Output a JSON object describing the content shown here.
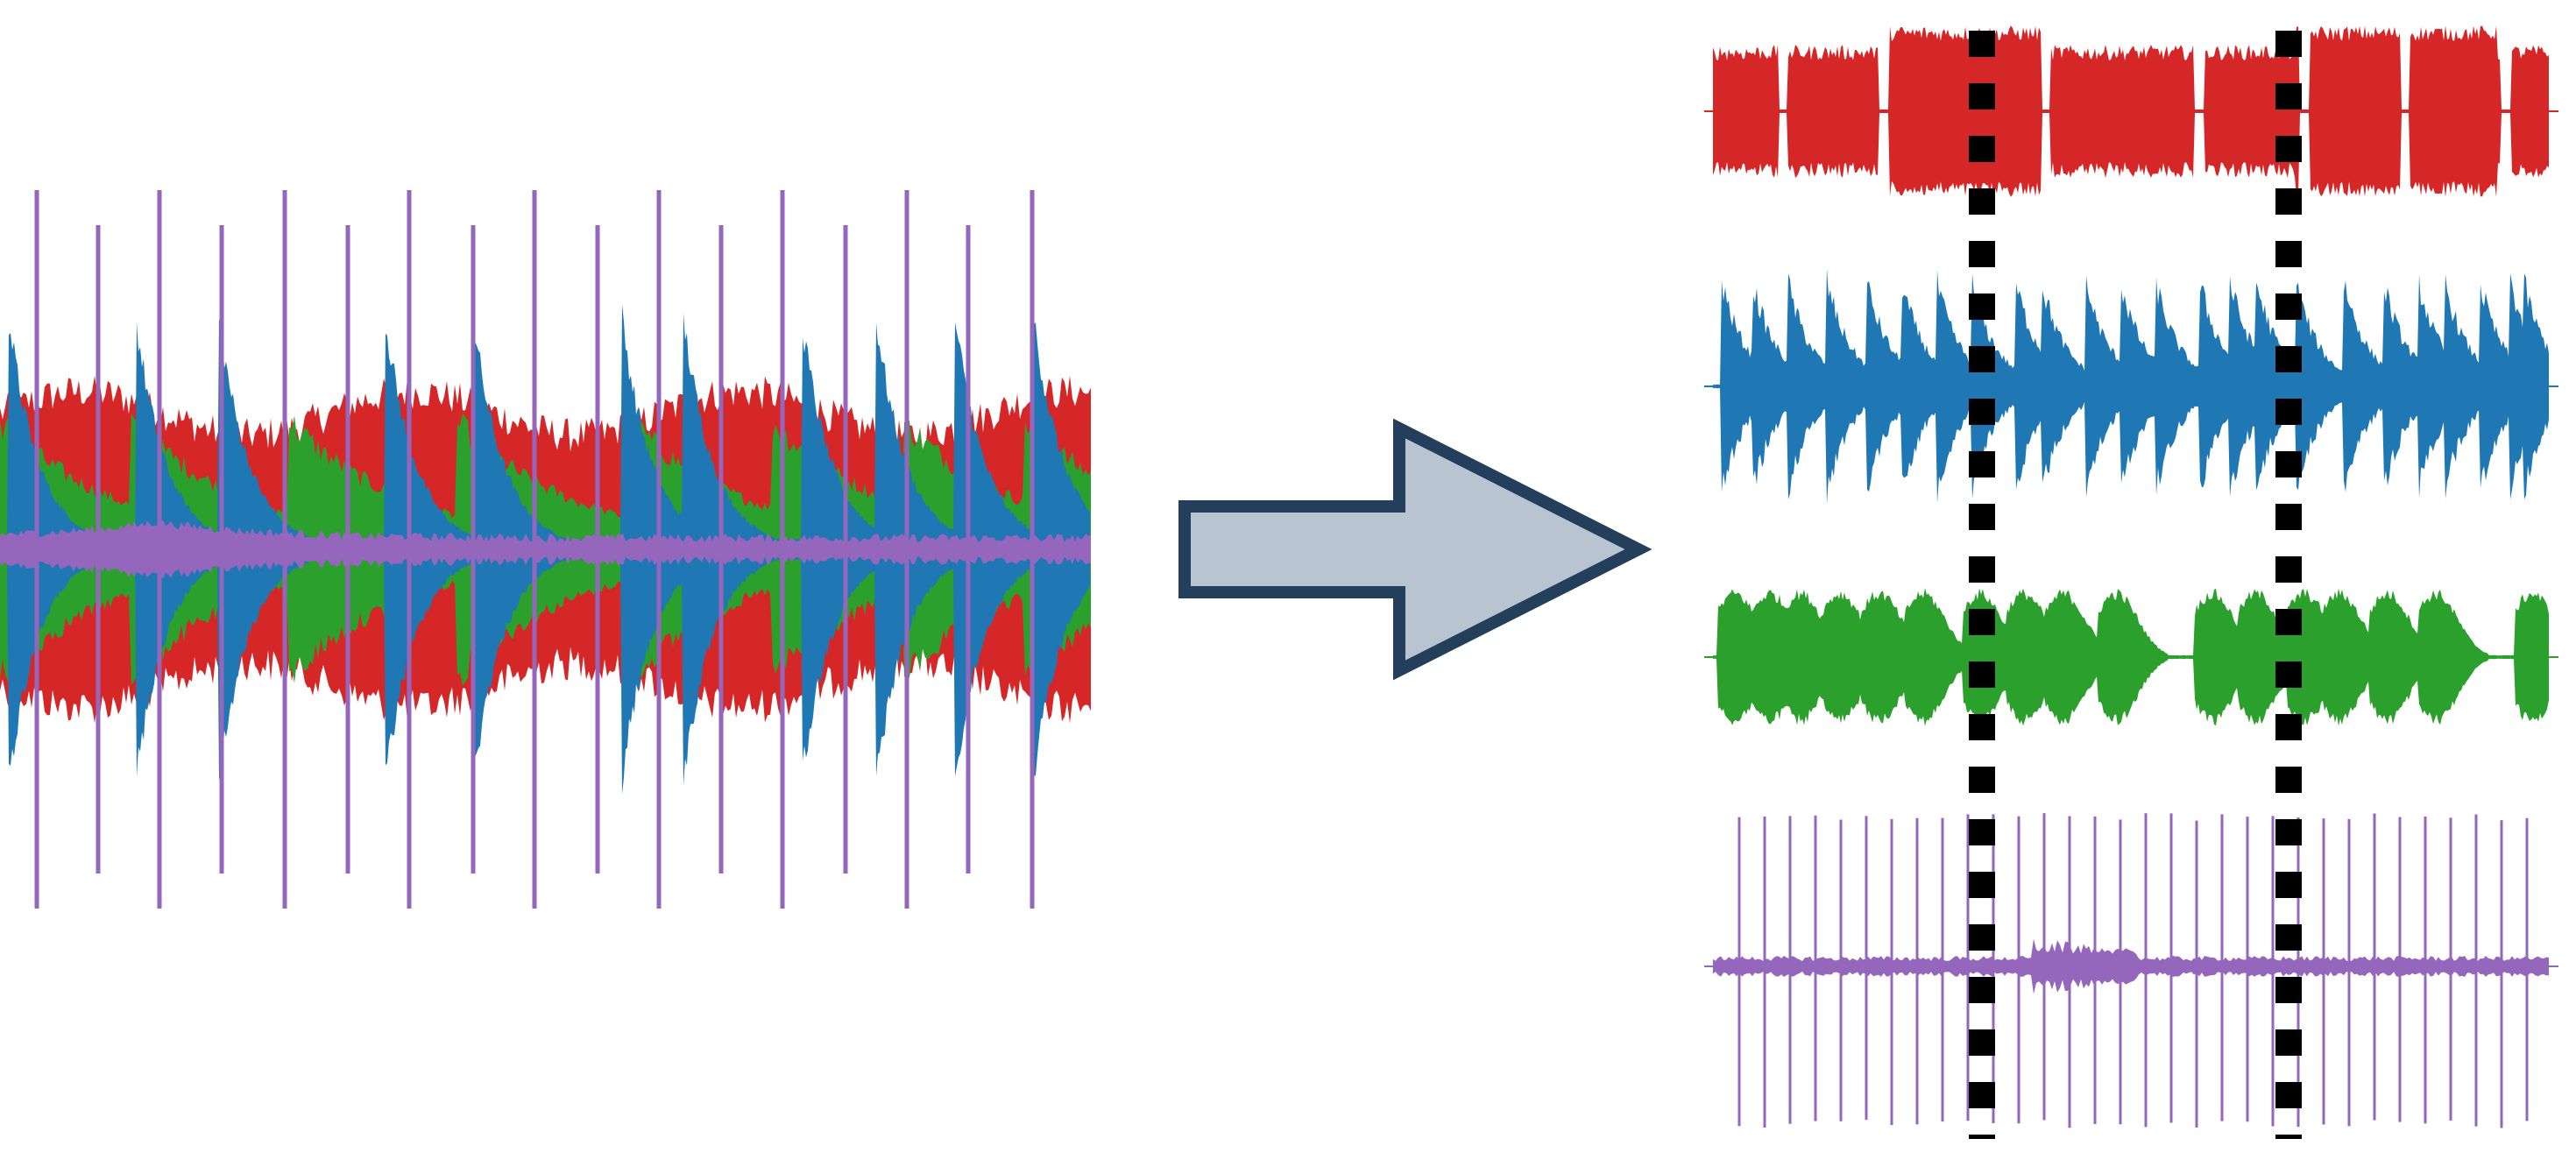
{
  "diagram": {
    "kind": "source-separation",
    "mixture": {
      "tracks": [
        {
          "id": "red-track",
          "color": "#d62728"
        },
        {
          "id": "green-track",
          "color": "#2ca02c"
        },
        {
          "id": "blue-track",
          "color": "#1f77b4"
        },
        {
          "id": "purple-track",
          "color": "#9467bd"
        }
      ]
    },
    "arrow": {
      "fill": "#b8c5d1",
      "stroke": "#243f5c"
    },
    "sources": [
      {
        "id": "red-source",
        "color": "#d62728",
        "style": "sustained"
      },
      {
        "id": "blue-source",
        "color": "#1f77b4",
        "style": "plucked"
      },
      {
        "id": "green-source",
        "color": "#2ca02c",
        "style": "swells"
      },
      {
        "id": "purple-source",
        "color": "#9467bd",
        "style": "percussive"
      }
    ],
    "markers": {
      "count": 2,
      "style": "dashed",
      "color": "#000000"
    }
  }
}
